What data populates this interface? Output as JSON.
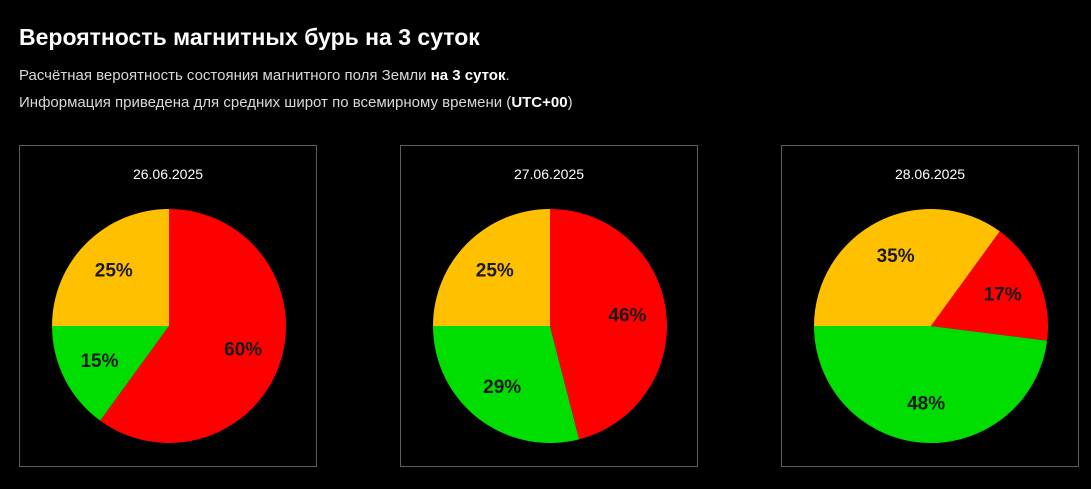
{
  "header": {
    "title": "Вероятность магнитных бурь на 3 суток",
    "line1_prefix": "Расчётная вероятность состояния магнитного поля Земли ",
    "line1_bold": "на 3 суток",
    "line1_suffix": ".",
    "line2_prefix": "Информация приведена для средних широт по всемирному времени (",
    "line2_bold": "UTC+00",
    "line2_suffix": ")"
  },
  "colors": {
    "green": "#00dd00",
    "yellow": "#ffc000",
    "red": "#ff0000",
    "background": "#000000"
  },
  "chart_data": [
    {
      "type": "pie",
      "title": "26.06.2025",
      "slices": [
        {
          "label": "15%",
          "value": 15,
          "color": "#00dd00"
        },
        {
          "label": "25%",
          "value": 25,
          "color": "#ffc000"
        },
        {
          "label": "60%",
          "value": 60,
          "color": "#ff0000"
        }
      ]
    },
    {
      "type": "pie",
      "title": "27.06.2025",
      "slices": [
        {
          "label": "29%",
          "value": 29,
          "color": "#00dd00"
        },
        {
          "label": "25%",
          "value": 25,
          "color": "#ffc000"
        },
        {
          "label": "46%",
          "value": 46,
          "color": "#ff0000"
        }
      ]
    },
    {
      "type": "pie",
      "title": "28.06.2025",
      "slices": [
        {
          "label": "48%",
          "value": 48,
          "color": "#00dd00"
        },
        {
          "label": "35%",
          "value": 35,
          "color": "#ffc000"
        },
        {
          "label": "17%",
          "value": 17,
          "color": "#ff0000"
        }
      ]
    }
  ]
}
